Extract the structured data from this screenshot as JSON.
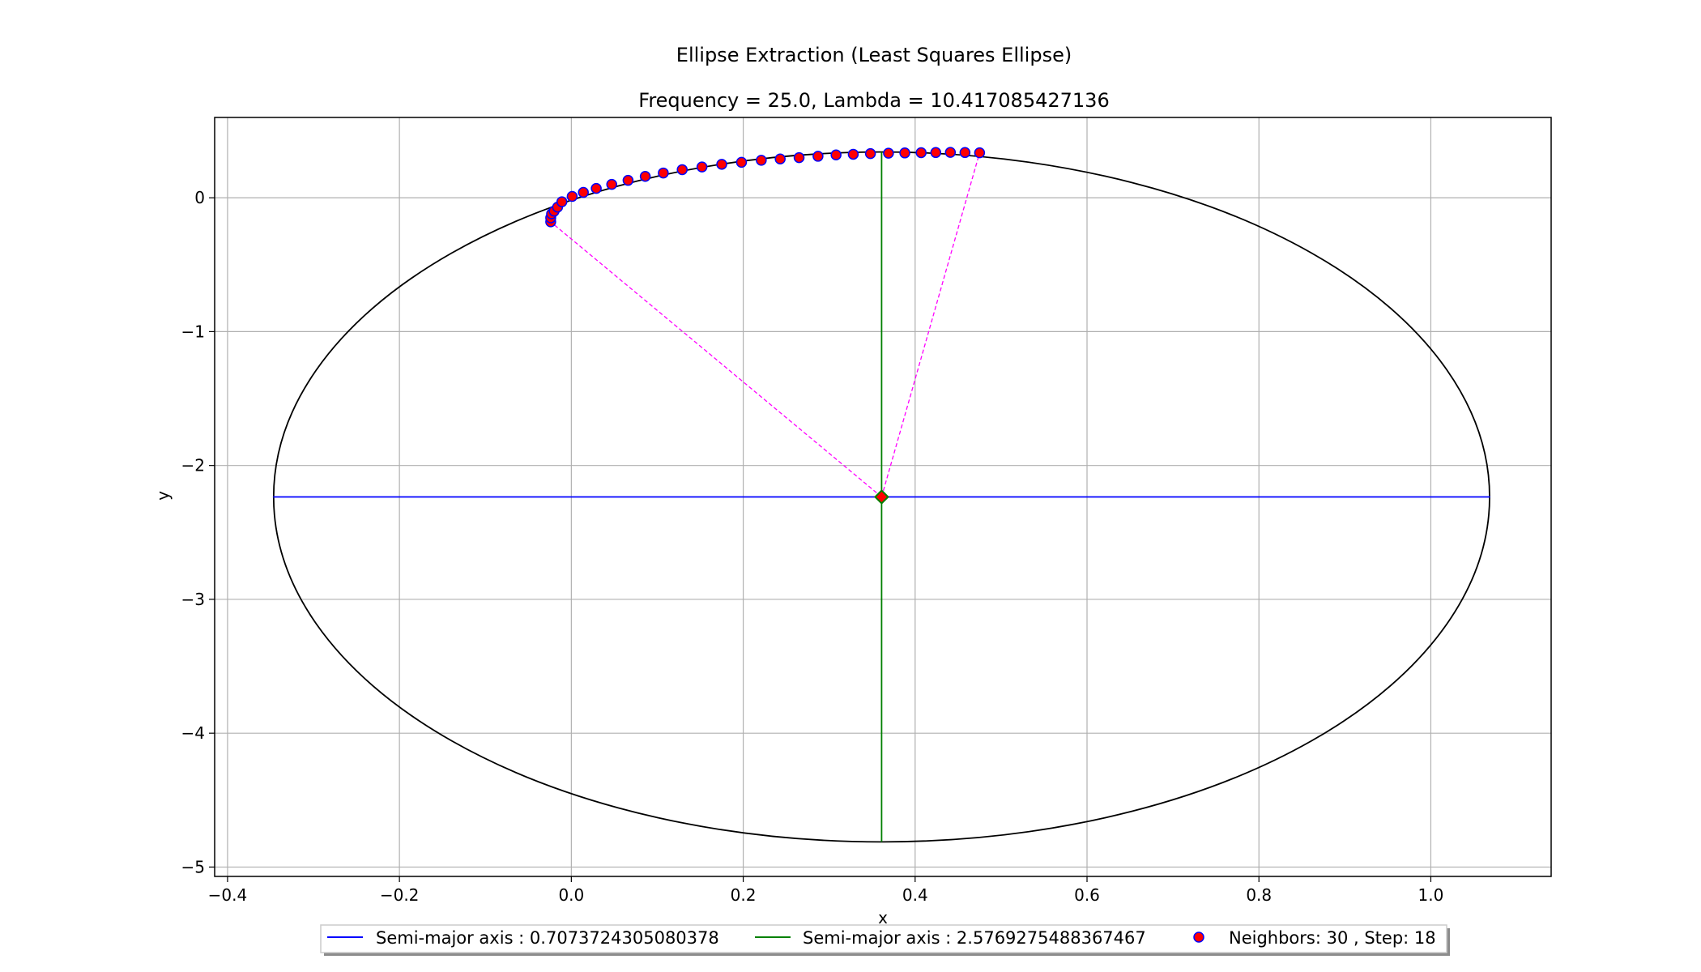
{
  "chart_data": {
    "type": "scatter",
    "title": "Ellipse Extraction (Least Squares Ellipse)",
    "subtitle": "Frequency = 25.0, Lambda = 10.417085427136",
    "xlabel": "x",
    "ylabel": "y",
    "xlim": [
      -0.415,
      1.14
    ],
    "ylim": [
      -5.07,
      0.6
    ],
    "xticks": [
      -0.4,
      -0.2,
      0.0,
      0.2,
      0.4,
      0.6,
      0.8,
      1.0
    ],
    "xtick_labels": [
      "−0.4",
      "−0.2",
      "0.0",
      "0.2",
      "0.4",
      "0.6",
      "0.8",
      "1.0"
    ],
    "yticks": [
      0,
      -1,
      -2,
      -3,
      -4,
      -5
    ],
    "ytick_labels": [
      "0",
      "−1",
      "−2",
      "−3",
      "−4",
      "−5"
    ],
    "grid": true,
    "legend_position": "bottom-center",
    "ellipse": {
      "center": [
        0.361,
        -2.235
      ],
      "semi_axis_x": 0.7073724305080378,
      "semi_axis_y": 2.5769275488367467,
      "color": "#000000"
    },
    "series": [
      {
        "name": "Semi-major axis : 0.7073724305080378",
        "kind": "line",
        "color": "#0000ff",
        "x": [
          -0.347,
          1.069
        ],
        "y": [
          -2.235,
          -2.235
        ]
      },
      {
        "name": "Semi-major axis : 2.5769275488367467",
        "kind": "line",
        "color": "#008000",
        "x": [
          0.361,
          0.361
        ],
        "y": [
          0.342,
          -4.812
        ]
      },
      {
        "name": "Neighbors: 30 , Step: 18",
        "kind": "scatter",
        "color": "#ff0000",
        "edgecolor": "#0000ff",
        "x": [
          -0.024,
          -0.024,
          -0.023,
          -0.02,
          -0.016,
          -0.011,
          0.001,
          0.014,
          0.029,
          0.047,
          0.066,
          0.086,
          0.107,
          0.129,
          0.152,
          0.175,
          0.198,
          0.221,
          0.243,
          0.265,
          0.287,
          0.308,
          0.328,
          0.348,
          0.369,
          0.388,
          0.407,
          0.424,
          0.441,
          0.458,
          0.475
        ],
        "y": [
          -0.18,
          -0.15,
          -0.12,
          -0.1,
          -0.07,
          -0.03,
          0.01,
          0.04,
          0.07,
          0.1,
          0.13,
          0.16,
          0.185,
          0.21,
          0.23,
          0.25,
          0.265,
          0.28,
          0.29,
          0.3,
          0.31,
          0.32,
          0.325,
          0.33,
          0.333,
          0.335,
          0.337,
          0.338,
          0.339,
          0.338,
          0.336
        ]
      }
    ],
    "center_marker": {
      "x": 0.361,
      "y": -2.235,
      "color": "#ff0000",
      "edgecolor": "#008000"
    },
    "connectors": {
      "color": "#ff00ff",
      "segments": [
        {
          "x": [
            0.361,
            -0.024
          ],
          "y": [
            -2.235,
            -0.18
          ]
        },
        {
          "x": [
            0.361,
            0.475
          ],
          "y": [
            -2.235,
            0.336
          ]
        }
      ]
    }
  }
}
